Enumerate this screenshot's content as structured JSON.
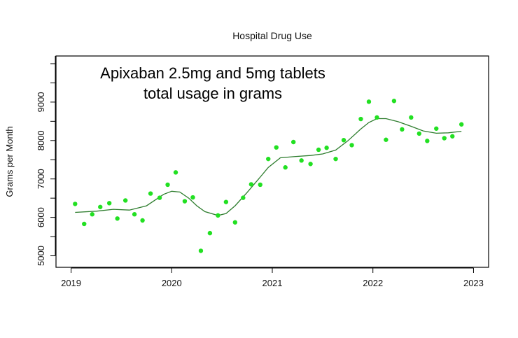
{
  "chart_data": {
    "type": "scatter",
    "title": "Hospital Drug Use",
    "annotation_lines": [
      "Apixaban 2.5mg and 5mg tablets",
      "total usage in grams"
    ],
    "xlabel": "",
    "ylabel": "Grams per Month",
    "xlim": [
      2018.85,
      2023.15
    ],
    "ylim": [
      4700,
      10200
    ],
    "x_ticks": [
      2019,
      2020,
      2021,
      2022,
      2023
    ],
    "y_ticks": [
      5000,
      6000,
      7000,
      8000,
      9000
    ],
    "grid": false,
    "points_color": "#22e022",
    "smooth_color": "#2e7d2e",
    "points": [
      {
        "x": 2019.04,
        "y": 6350
      },
      {
        "x": 2019.13,
        "y": 5830
      },
      {
        "x": 2019.21,
        "y": 6080
      },
      {
        "x": 2019.29,
        "y": 6270
      },
      {
        "x": 2019.38,
        "y": 6370
      },
      {
        "x": 2019.46,
        "y": 5970
      },
      {
        "x": 2019.54,
        "y": 6440
      },
      {
        "x": 2019.63,
        "y": 6080
      },
      {
        "x": 2019.71,
        "y": 5920
      },
      {
        "x": 2019.79,
        "y": 6620
      },
      {
        "x": 2019.88,
        "y": 6510
      },
      {
        "x": 2019.96,
        "y": 6850
      },
      {
        "x": 2020.04,
        "y": 7170
      },
      {
        "x": 2020.13,
        "y": 6420
      },
      {
        "x": 2020.21,
        "y": 6520
      },
      {
        "x": 2020.29,
        "y": 5130
      },
      {
        "x": 2020.38,
        "y": 5590
      },
      {
        "x": 2020.46,
        "y": 6050
      },
      {
        "x": 2020.54,
        "y": 6400
      },
      {
        "x": 2020.63,
        "y": 5870
      },
      {
        "x": 2020.71,
        "y": 6510
      },
      {
        "x": 2020.79,
        "y": 6860
      },
      {
        "x": 2020.88,
        "y": 6850
      },
      {
        "x": 2020.96,
        "y": 7520
      },
      {
        "x": 2021.04,
        "y": 7820
      },
      {
        "x": 2021.13,
        "y": 7300
      },
      {
        "x": 2021.21,
        "y": 7960
      },
      {
        "x": 2021.29,
        "y": 7480
      },
      {
        "x": 2021.38,
        "y": 7390
      },
      {
        "x": 2021.46,
        "y": 7760
      },
      {
        "x": 2021.54,
        "y": 7810
      },
      {
        "x": 2021.63,
        "y": 7520
      },
      {
        "x": 2021.71,
        "y": 8010
      },
      {
        "x": 2021.79,
        "y": 7880
      },
      {
        "x": 2021.88,
        "y": 8560
      },
      {
        "x": 2021.96,
        "y": 9010
      },
      {
        "x": 2022.04,
        "y": 8600
      },
      {
        "x": 2022.13,
        "y": 8020
      },
      {
        "x": 2022.21,
        "y": 9030
      },
      {
        "x": 2022.29,
        "y": 8290
      },
      {
        "x": 2022.38,
        "y": 8600
      },
      {
        "x": 2022.46,
        "y": 8180
      },
      {
        "x": 2022.54,
        "y": 7990
      },
      {
        "x": 2022.63,
        "y": 8310
      },
      {
        "x": 2022.71,
        "y": 8060
      },
      {
        "x": 2022.79,
        "y": 8110
      },
      {
        "x": 2022.88,
        "y": 8420
      }
    ],
    "smooth_line": [
      {
        "x": 2019.04,
        "y": 6130
      },
      {
        "x": 2019.25,
        "y": 6160
      },
      {
        "x": 2019.42,
        "y": 6210
      },
      {
        "x": 2019.58,
        "y": 6190
      },
      {
        "x": 2019.75,
        "y": 6300
      },
      {
        "x": 2019.92,
        "y": 6600
      },
      {
        "x": 2020.0,
        "y": 6680
      },
      {
        "x": 2020.08,
        "y": 6660
      },
      {
        "x": 2020.17,
        "y": 6500
      },
      {
        "x": 2020.25,
        "y": 6300
      },
      {
        "x": 2020.33,
        "y": 6150
      },
      {
        "x": 2020.46,
        "y": 6050
      },
      {
        "x": 2020.54,
        "y": 6100
      },
      {
        "x": 2020.63,
        "y": 6300
      },
      {
        "x": 2020.75,
        "y": 6650
      },
      {
        "x": 2020.88,
        "y": 7050
      },
      {
        "x": 2020.96,
        "y": 7300
      },
      {
        "x": 2021.08,
        "y": 7550
      },
      {
        "x": 2021.21,
        "y": 7580
      },
      {
        "x": 2021.38,
        "y": 7610
      },
      {
        "x": 2021.5,
        "y": 7650
      },
      {
        "x": 2021.63,
        "y": 7750
      },
      {
        "x": 2021.75,
        "y": 7990
      },
      {
        "x": 2021.88,
        "y": 8300
      },
      {
        "x": 2021.96,
        "y": 8470
      },
      {
        "x": 2022.04,
        "y": 8570
      },
      {
        "x": 2022.13,
        "y": 8570
      },
      {
        "x": 2022.25,
        "y": 8490
      },
      {
        "x": 2022.38,
        "y": 8370
      },
      {
        "x": 2022.5,
        "y": 8250
      },
      {
        "x": 2022.63,
        "y": 8190
      },
      {
        "x": 2022.75,
        "y": 8200
      },
      {
        "x": 2022.88,
        "y": 8240
      }
    ]
  }
}
